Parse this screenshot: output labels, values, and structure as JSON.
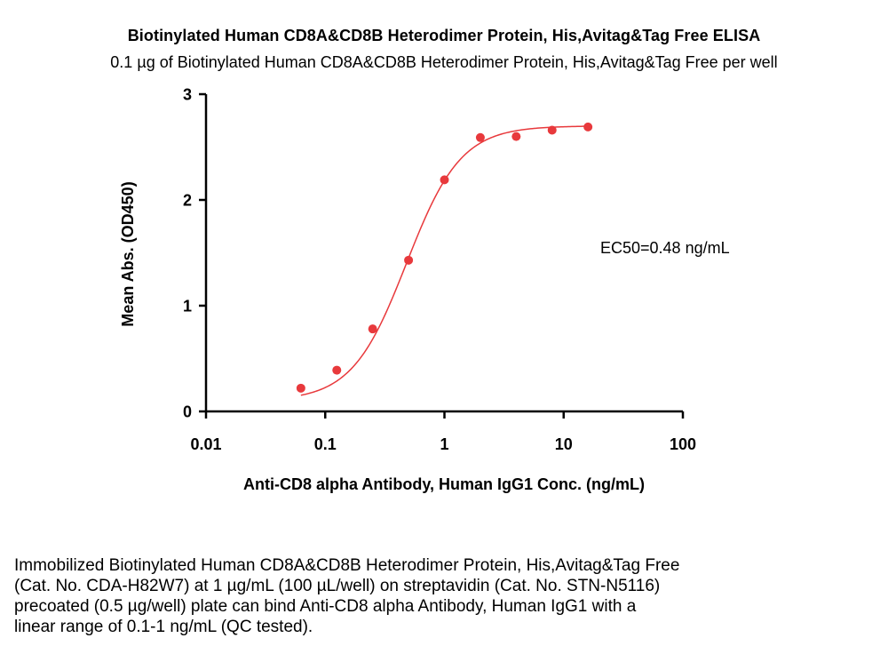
{
  "chart_data": {
    "type": "scatter",
    "title": "Biotinylated Human CD8A&CD8B Heterodimer Protein, His,Avitag&Tag Free ELISA",
    "subtitle": "0.1 µg of Biotinylated Human CD8A&CD8B Heterodimer Protein, His,Avitag&Tag Free per well",
    "xlabel": "Anti-CD8 alpha Antibody, Human IgG1 Conc. (ng/mL)",
    "ylabel": "Mean Abs. (OD450)",
    "xscale": "log",
    "xlim": [
      0.01,
      100
    ],
    "ylim": [
      0,
      3
    ],
    "xticks": [
      0.01,
      0.1,
      1,
      10,
      100
    ],
    "xtick_labels": [
      "0.01",
      "0.1",
      "1",
      "10",
      "100"
    ],
    "yticks": [
      0,
      1,
      2,
      3
    ],
    "ytick_labels": [
      "0",
      "1",
      "2",
      "3"
    ],
    "grid": false,
    "color": "#e8393c",
    "series": [
      {
        "name": "OD450",
        "x": [
          0.0625,
          0.125,
          0.25,
          0.5,
          1,
          2,
          4,
          8,
          16
        ],
        "y": [
          0.22,
          0.39,
          0.78,
          1.43,
          2.19,
          2.59,
          2.6,
          2.66,
          2.69
        ]
      }
    ],
    "fit": {
      "model": "4PL",
      "bottom": 0.1,
      "top": 2.7,
      "ec50": 0.48,
      "hill": 1.9
    },
    "annotation": "EC50=0.48 ng/mL"
  },
  "caption": [
    "Immobilized Biotinylated Human CD8A&CD8B Heterodimer Protein, His,Avitag&Tag Free",
    "(Cat. No. CDA-H82W7) at 1 µg/mL (100 µL/well) on streptavidin (Cat. No. STN-N5116)",
    "precoated (0.5 µg/well) plate can bind Anti-CD8 alpha Antibody, Human IgG1 with a",
    "linear range of 0.1-1 ng/mL (QC tested)."
  ]
}
